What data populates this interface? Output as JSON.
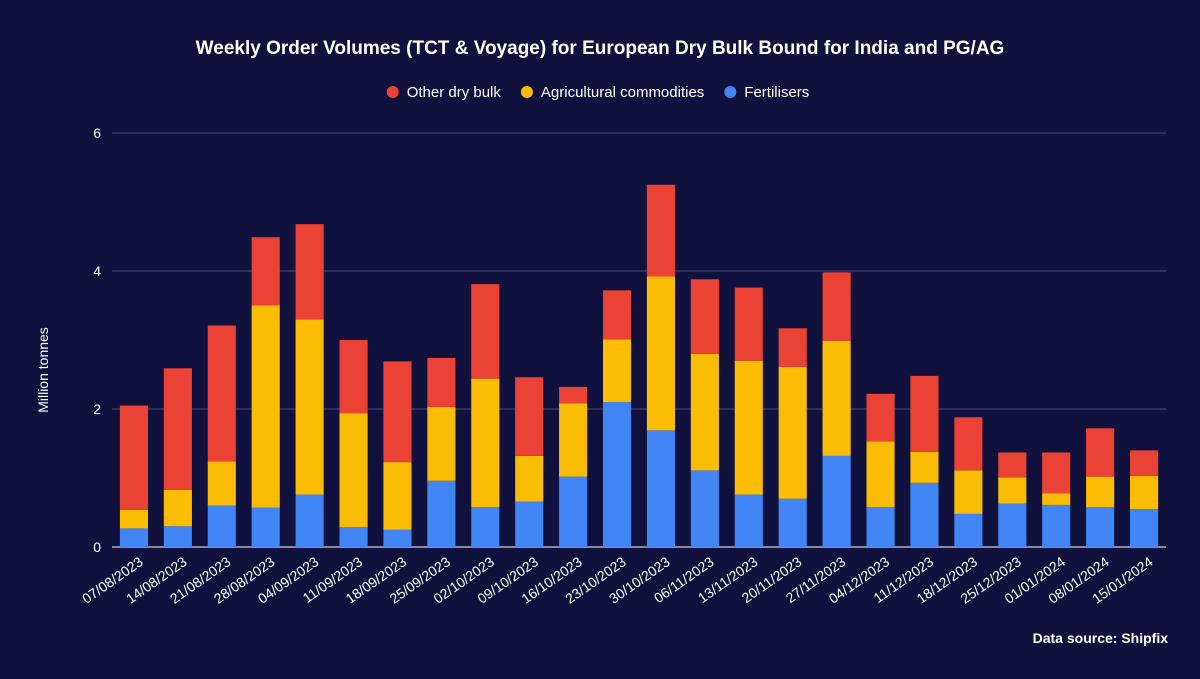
{
  "chart_data": {
    "type": "bar",
    "stacked": true,
    "title": "Weekly Order Volumes (TCT & Voyage) for European Dry Bulk Bound for India and PG/AG",
    "xlabel": "",
    "ylabel": "Million tonnes",
    "ylim": [
      0,
      6
    ],
    "yticks": [
      0,
      2,
      4,
      6
    ],
    "grid": true,
    "legend_position": "top",
    "categories": [
      "07/08/2023",
      "14/08/2023",
      "21/08/2023",
      "28/08/2023",
      "04/09/2023",
      "11/09/2023",
      "18/09/2023",
      "25/09/2023",
      "02/10/2023",
      "09/10/2023",
      "16/10/2023",
      "23/10/2023",
      "30/10/2023",
      "06/11/2023",
      "13/11/2023",
      "20/11/2023",
      "27/11/2023",
      "04/12/2023",
      "11/12/2023",
      "18/12/2023",
      "25/12/2023",
      "01/01/2024",
      "08/01/2024",
      "15/01/2024"
    ],
    "series": [
      {
        "name": "Fertilisers",
        "color": "#4285f4",
        "values": [
          0.27,
          0.3,
          0.6,
          0.57,
          0.76,
          0.29,
          0.25,
          0.96,
          0.58,
          0.66,
          1.02,
          2.1,
          1.69,
          1.11,
          0.76,
          0.7,
          1.32,
          0.58,
          0.93,
          0.48,
          0.63,
          0.61,
          0.58,
          0.55
        ]
      },
      {
        "name": "Agricultural commodities",
        "color": "#fbbc04",
        "values": [
          0.27,
          0.53,
          0.64,
          2.93,
          2.54,
          1.65,
          0.98,
          1.07,
          1.86,
          0.66,
          1.06,
          0.91,
          2.23,
          1.69,
          1.94,
          1.91,
          1.67,
          0.95,
          0.45,
          0.63,
          0.38,
          0.17,
          0.44,
          0.48
        ]
      },
      {
        "name": "Other dry bulk",
        "color": "#ea4335",
        "values": [
          1.51,
          1.76,
          1.97,
          0.99,
          1.38,
          1.06,
          1.46,
          0.71,
          1.37,
          1.14,
          0.24,
          0.71,
          1.33,
          1.08,
          1.06,
          0.56,
          0.99,
          0.69,
          1.1,
          0.77,
          0.36,
          0.59,
          0.7,
          0.37
        ]
      }
    ],
    "legend_order": [
      "Other dry bulk",
      "Agricultural commodities",
      "Fertilisers"
    ],
    "source_note": "Data source: Shipfix"
  }
}
